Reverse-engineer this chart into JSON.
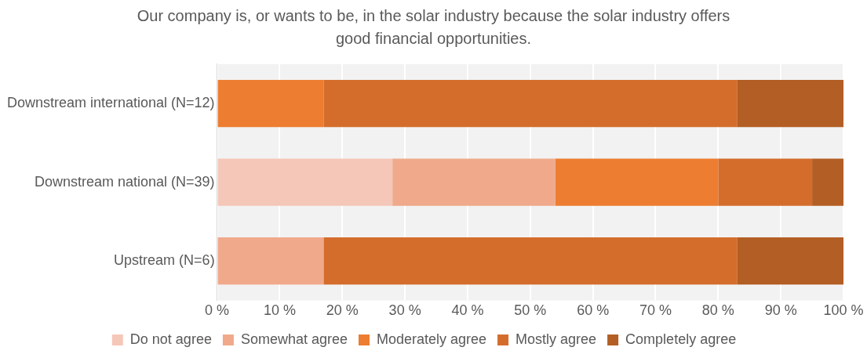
{
  "chart_data": {
    "type": "bar",
    "orientation": "horizontal",
    "stacked": true,
    "title": "Our company is, or wants to be, in the solar industry because the solar industry offers good financial opportunities.",
    "categories": [
      "Downstream international (N=12)",
      "Downstream national (N=39)",
      "Upstream (N=6)"
    ],
    "series": [
      {
        "name": "Do not agree",
        "color": "#f4c7b8",
        "values": [
          0,
          28,
          0
        ]
      },
      {
        "name": "Somewhat agree",
        "color": "#f0a98b",
        "values": [
          0,
          26,
          17
        ]
      },
      {
        "name": "Moderately agree",
        "color": "#ed7d31",
        "values": [
          17,
          26,
          0
        ]
      },
      {
        "name": "Mostly agree",
        "color": "#d46d2c",
        "values": [
          66,
          15,
          66
        ]
      },
      {
        "name": "Completely agree",
        "color": "#b35e24",
        "values": [
          17,
          5,
          17
        ]
      }
    ],
    "xlim": [
      0,
      100
    ],
    "xticks": [
      {
        "value": 0,
        "label": "0 %"
      },
      {
        "value": 10,
        "label": "10 %"
      },
      {
        "value": 20,
        "label": "20 %"
      },
      {
        "value": 30,
        "label": "30 %"
      },
      {
        "value": 40,
        "label": "40 %"
      },
      {
        "value": 50,
        "label": "50 %"
      },
      {
        "value": 60,
        "label": "60 %"
      },
      {
        "value": 70,
        "label": "70 %"
      },
      {
        "value": 80,
        "label": "80 %"
      },
      {
        "value": 90,
        "label": "90 %"
      },
      {
        "value": 100,
        "label": "100 %"
      }
    ],
    "grid": "x",
    "legend": "bottom"
  }
}
